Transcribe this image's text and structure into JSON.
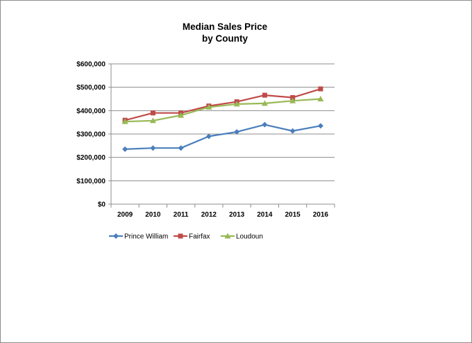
{
  "chart_data": {
    "type": "line",
    "title": [
      "Median Sales Price",
      "by County"
    ],
    "x": [
      "2009",
      "2010",
      "2011",
      "2012",
      "2013",
      "2014",
      "2015",
      "2016"
    ],
    "ylim": [
      0,
      600000
    ],
    "yticks": [
      0,
      100000,
      200000,
      300000,
      400000,
      500000,
      600000
    ],
    "ytick_labels": [
      "$0",
      "$100,000",
      "$200,000",
      "$300,000",
      "$400,000",
      "$500,000",
      "$600,000"
    ],
    "grid": "horizontal",
    "legend_position": "bottom",
    "series": [
      {
        "name": "Prince William",
        "color": "#4a7ebb",
        "marker": "diamond",
        "values": [
          235000,
          240000,
          240000,
          290000,
          309000,
          340000,
          313000,
          335000
        ]
      },
      {
        "name": "Fairfax",
        "color": "#be4b48",
        "marker": "square",
        "values": [
          359000,
          390000,
          390000,
          420000,
          438000,
          466000,
          456000,
          493000
        ]
      },
      {
        "name": "Loudoun",
        "color": "#98b954",
        "marker": "triangle",
        "values": [
          353000,
          357000,
          380000,
          415000,
          428000,
          431000,
          442000,
          450000
        ]
      }
    ]
  }
}
